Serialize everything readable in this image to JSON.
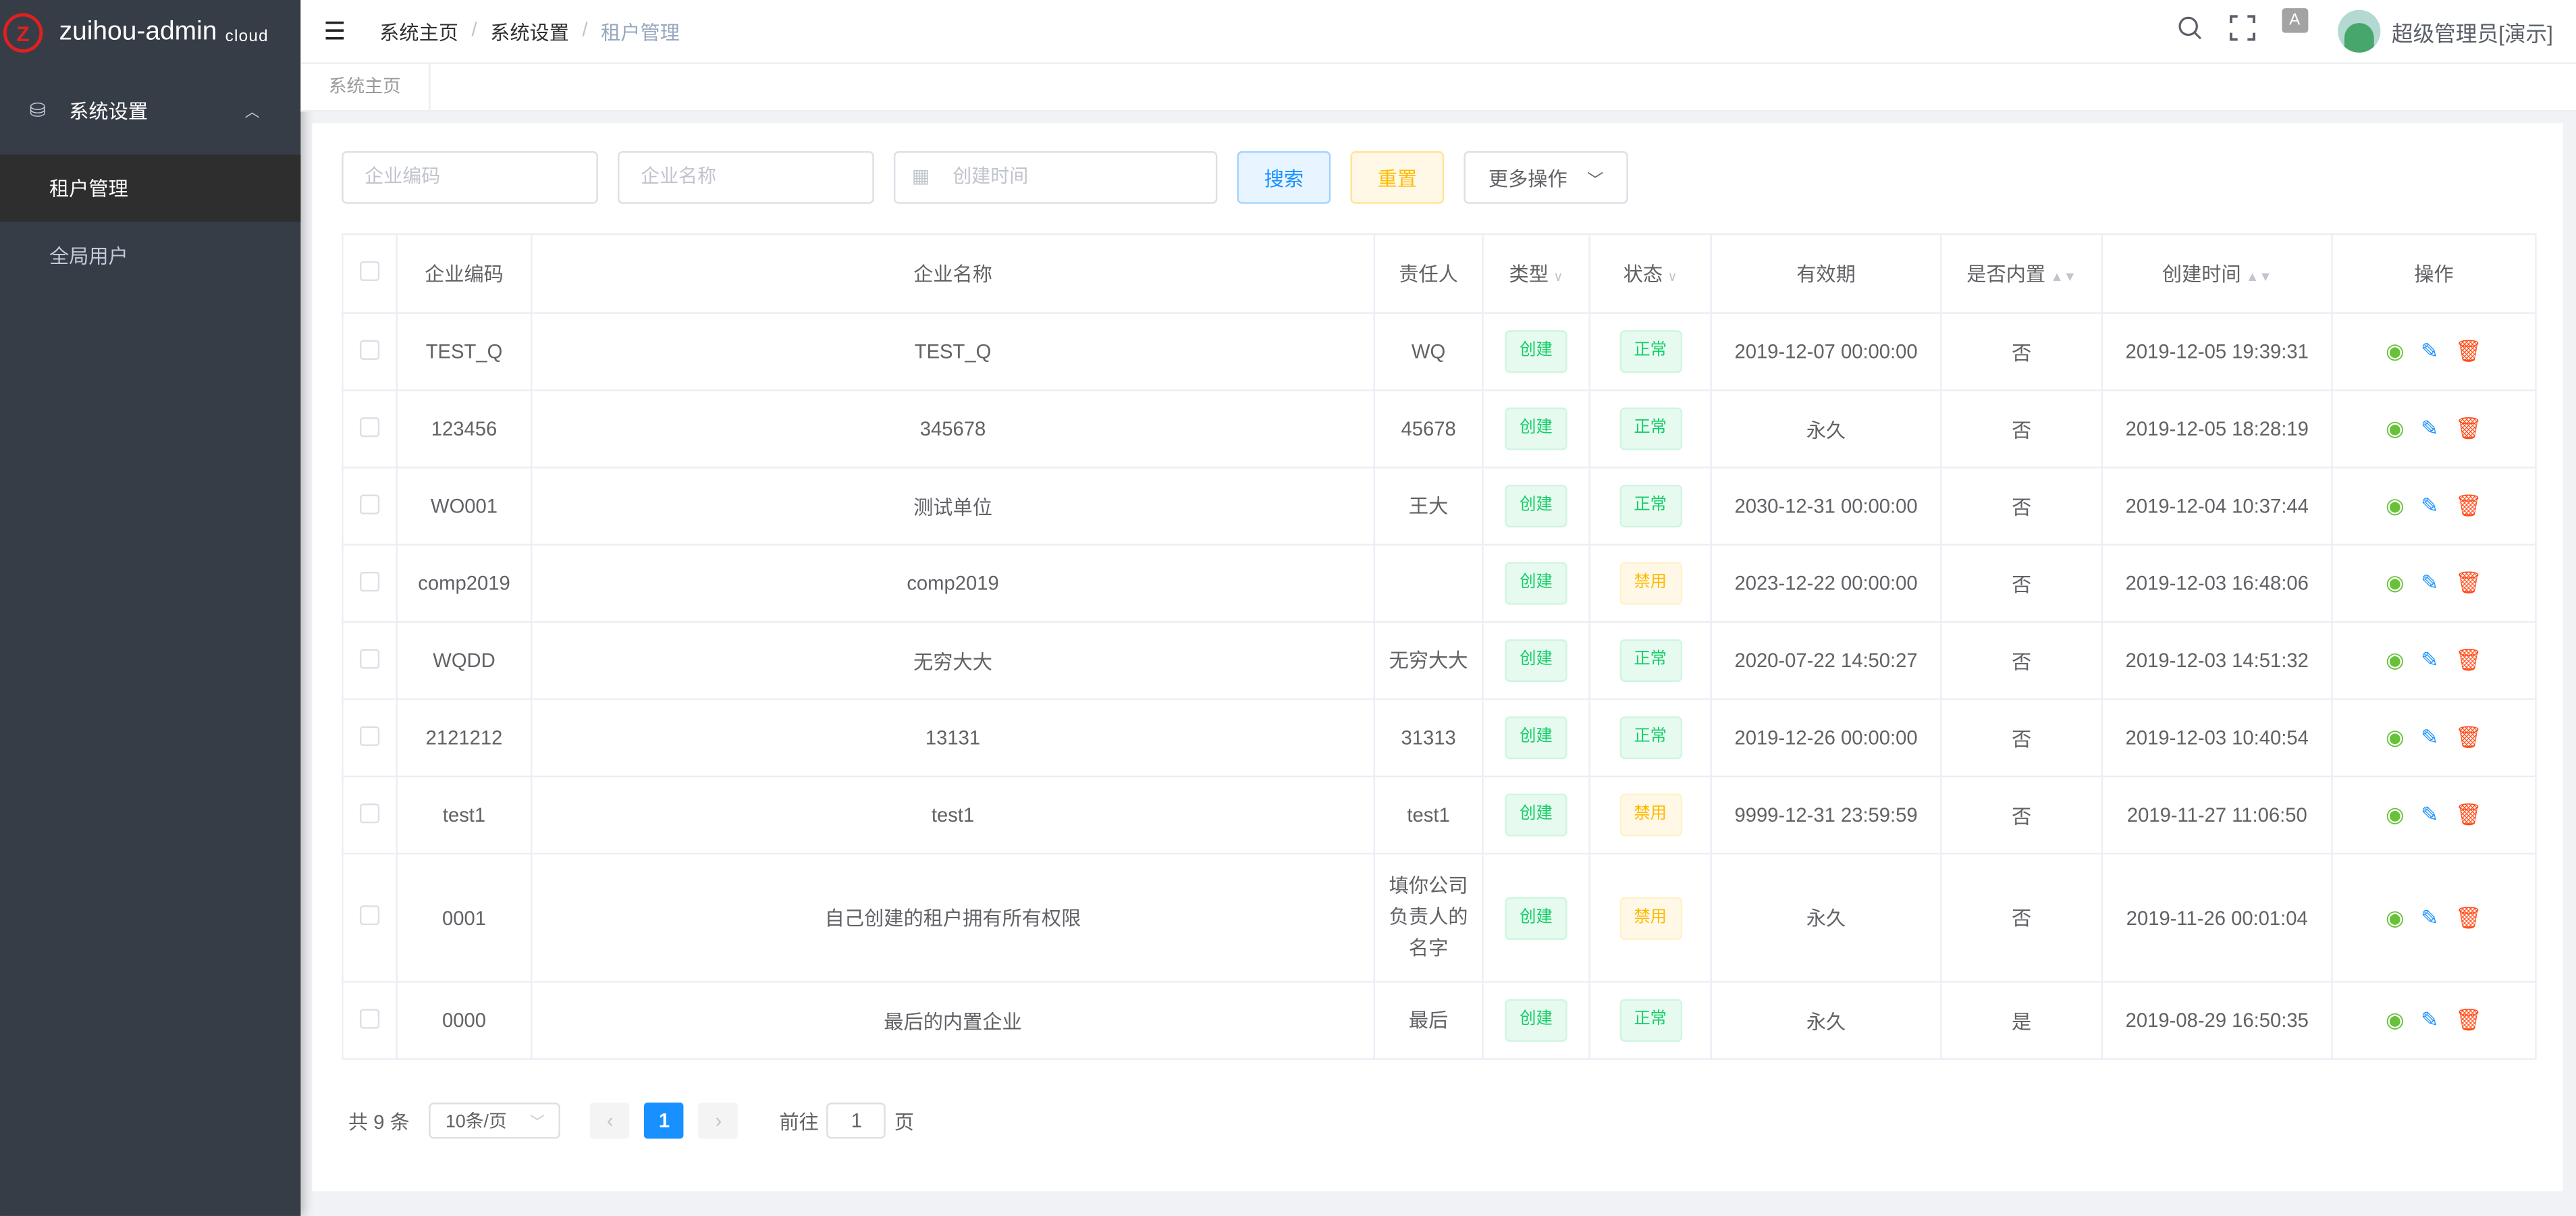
{
  "app": {
    "name": "zuihou-admin",
    "suffix": "cloud",
    "logo_letter": "Z"
  },
  "sidebar": {
    "group": {
      "label": "系统设置",
      "icon": "database-icon"
    },
    "items": [
      {
        "label": "租户管理",
        "active": true
      },
      {
        "label": "全局用户",
        "active": false
      }
    ]
  },
  "header": {
    "breadcrumb": [
      "系统主页",
      "系统设置",
      "租户管理"
    ],
    "lang_icon": "A文",
    "user": "超级管理员[演示]"
  },
  "tabs": [
    {
      "label": "系统主页"
    }
  ],
  "filters": {
    "code_placeholder": "企业编码",
    "name_placeholder": "企业名称",
    "date_placeholder": "创建时间",
    "search": "搜索",
    "reset": "重置",
    "more": "更多操作"
  },
  "table": {
    "columns": [
      "企业编码",
      "企业名称",
      "责任人",
      "类型",
      "状态",
      "有效期",
      "是否内置",
      "创建时间",
      "操作"
    ],
    "rows": [
      {
        "code": "TEST_Q",
        "name": "TEST_Q",
        "person": "WQ",
        "type": "创建",
        "status": "正常",
        "valid": "2019-12-07 00:00:00",
        "builtin": "否",
        "created": "2019-12-05 19:39:31"
      },
      {
        "code": "123456",
        "name": "345678",
        "person": "45678",
        "type": "创建",
        "status": "正常",
        "valid": "永久",
        "builtin": "否",
        "created": "2019-12-05 18:28:19"
      },
      {
        "code": "WO001",
        "name": "测试单位",
        "person": "王大",
        "type": "创建",
        "status": "正常",
        "valid": "2030-12-31 00:00:00",
        "builtin": "否",
        "created": "2019-12-04 10:37:44"
      },
      {
        "code": "comp2019",
        "name": "comp2019",
        "person": "",
        "type": "创建",
        "status": "禁用",
        "valid": "2023-12-22 00:00:00",
        "builtin": "否",
        "created": "2019-12-03 16:48:06"
      },
      {
        "code": "WQDD",
        "name": "无穷大大",
        "person": "无穷大大",
        "type": "创建",
        "status": "正常",
        "valid": "2020-07-22 14:50:27",
        "builtin": "否",
        "created": "2019-12-03 14:51:32"
      },
      {
        "code": "2121212",
        "name": "13131",
        "person": "31313",
        "type": "创建",
        "status": "正常",
        "valid": "2019-12-26 00:00:00",
        "builtin": "否",
        "created": "2019-12-03 10:40:54"
      },
      {
        "code": "test1",
        "name": "test1",
        "person": "test1",
        "type": "创建",
        "status": "禁用",
        "valid": "9999-12-31 23:59:59",
        "builtin": "否",
        "created": "2019-11-27 11:06:50"
      },
      {
        "code": "0001",
        "name": "自己创建的租户拥有所有权限",
        "person": "填你公司负责人的名字",
        "type": "创建",
        "status": "禁用",
        "valid": "永久",
        "builtin": "否",
        "created": "2019-11-26 00:01:04"
      },
      {
        "code": "0000",
        "name": "最后的内置企业",
        "person": "最后",
        "type": "创建",
        "status": "正常",
        "valid": "永久",
        "builtin": "是",
        "created": "2019-08-29 16:50:35"
      }
    ]
  },
  "pagination": {
    "total": "共 9 条",
    "page_size": "10条/页",
    "current": "1",
    "goto_label": "前往",
    "goto_value": "1",
    "page_suffix": "页"
  },
  "colors": {
    "sidebar": "#373d47",
    "primary": "#1890ff",
    "success": "#13ce66",
    "warning": "#ffba00",
    "danger": "#ff4d1a"
  }
}
